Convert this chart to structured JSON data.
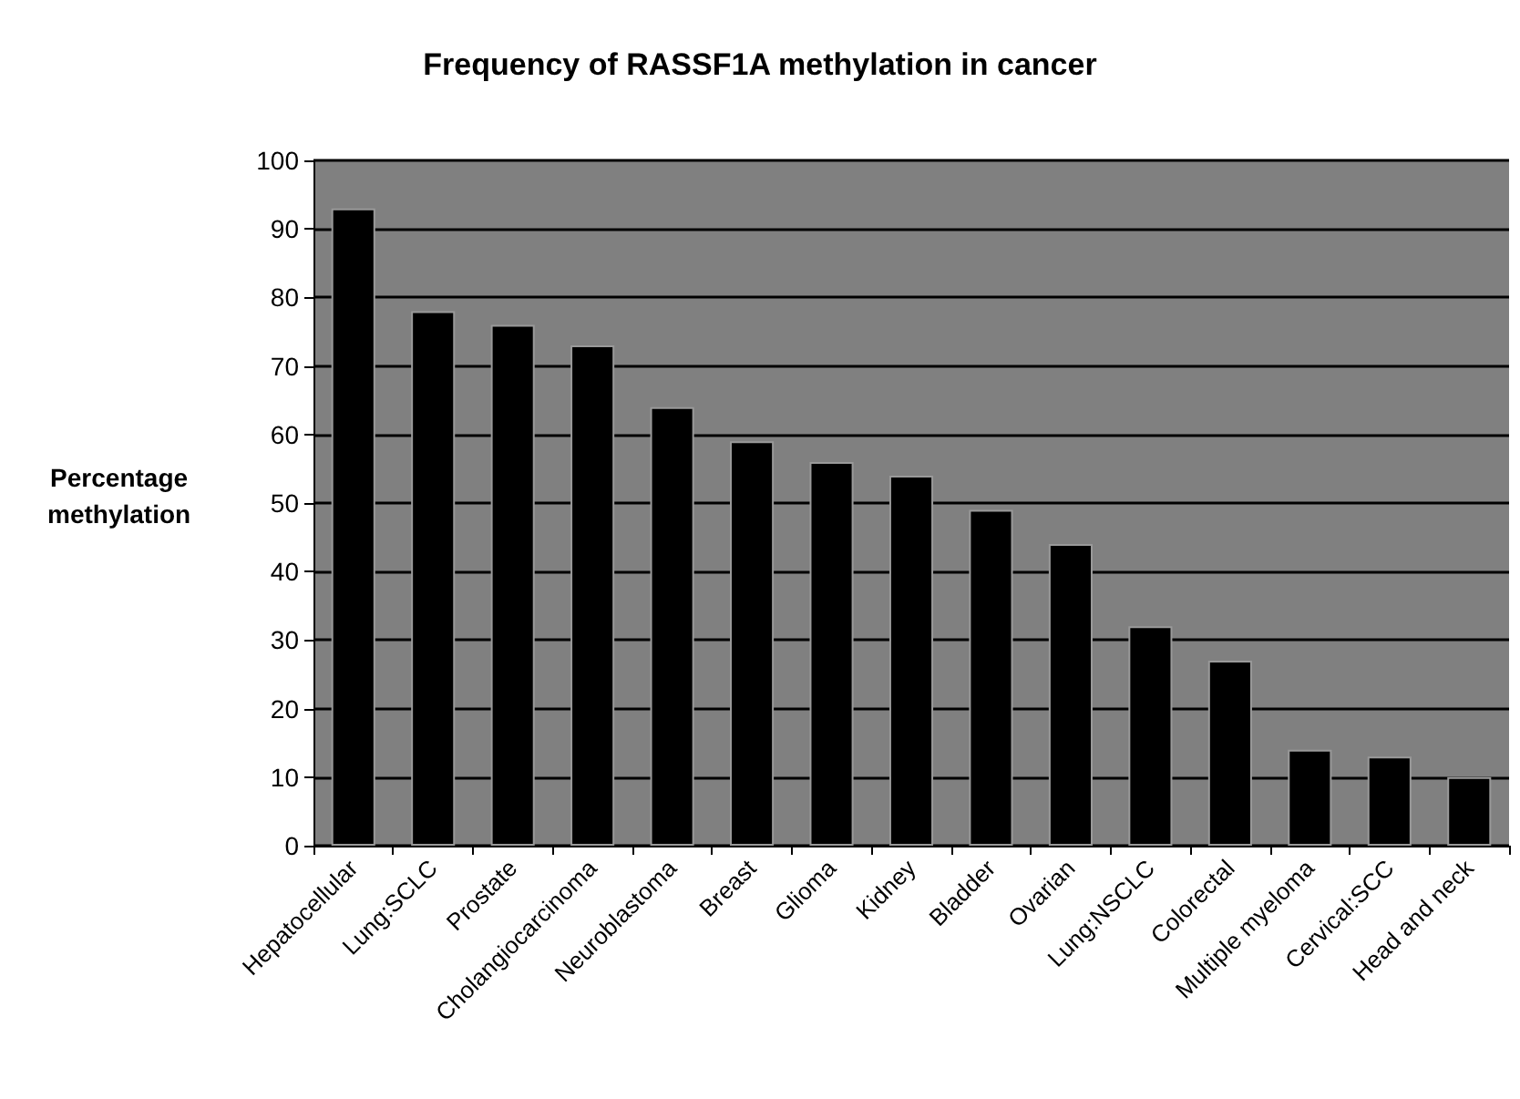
{
  "chart_data": {
    "type": "bar",
    "title": "Frequency of RASSF1A methylation in cancer",
    "ylabel": "Percentage\nmethylation",
    "categories": [
      "Hepatocellular",
      "Lung:SCLC",
      "Prostate",
      "Cholangiocarcinoma",
      "Neuroblastoma",
      "Breast",
      "Glioma",
      "Kidney",
      "Bladder",
      "Ovarian",
      "Lung:NSCLC",
      "Colorectal",
      "Multiple myeloma",
      "Cervical:SCC",
      "Head and neck"
    ],
    "values": [
      93,
      78,
      76,
      73,
      64,
      59,
      56,
      54,
      49,
      44,
      32,
      27,
      14,
      13,
      10
    ],
    "color": "#000000",
    "ylim": [
      0,
      100
    ],
    "yticks": [
      0,
      10,
      20,
      30,
      40,
      50,
      60,
      70,
      80,
      90,
      100
    ],
    "grid": "y"
  }
}
